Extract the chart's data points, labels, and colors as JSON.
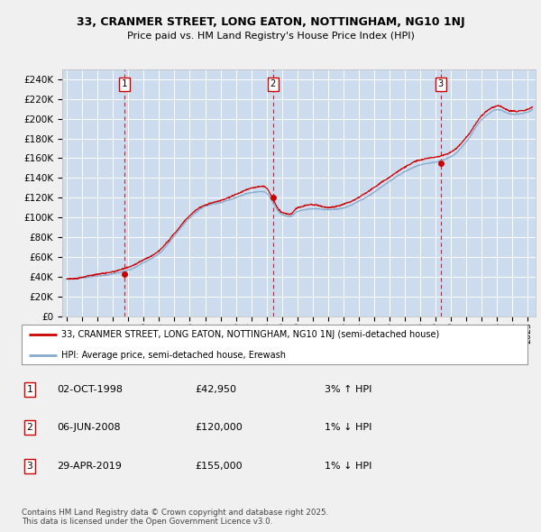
{
  "title1": "33, CRANMER STREET, LONG EATON, NOTTINGHAM, NG10 1NJ",
  "title2": "Price paid vs. HM Land Registry's House Price Index (HPI)",
  "ylim": [
    0,
    250000
  ],
  "yticks": [
    0,
    20000,
    40000,
    60000,
    80000,
    100000,
    120000,
    140000,
    160000,
    180000,
    200000,
    220000,
    240000
  ],
  "xlim_start": 1994.7,
  "xlim_end": 2025.5,
  "background_color": "#ccdcee",
  "fig_bg_color": "#f0f0f0",
  "grid_color": "#ffffff",
  "sale_color": "#cc0000",
  "hpi_color": "#88aacc",
  "transactions": [
    {
      "year": 1998.75,
      "price": 42950,
      "label": "1"
    },
    {
      "year": 2008.42,
      "price": 120000,
      "label": "2"
    },
    {
      "year": 2019.33,
      "price": 155000,
      "label": "3"
    }
  ],
  "legend_sale": "33, CRANMER STREET, LONG EATON, NOTTINGHAM, NG10 1NJ (semi-detached house)",
  "legend_hpi": "HPI: Average price, semi-detached house, Erewash",
  "table_rows": [
    {
      "num": "1",
      "date": "02-OCT-1998",
      "price": "£42,950",
      "change": "3% ↑ HPI"
    },
    {
      "num": "2",
      "date": "06-JUN-2008",
      "price": "£120,000",
      "change": "1% ↓ HPI"
    },
    {
      "num": "3",
      "date": "29-APR-2019",
      "price": "£155,000",
      "change": "1% ↓ HPI"
    }
  ],
  "footnote": "Contains HM Land Registry data © Crown copyright and database right 2025.\nThis data is licensed under the Open Government Licence v3.0."
}
